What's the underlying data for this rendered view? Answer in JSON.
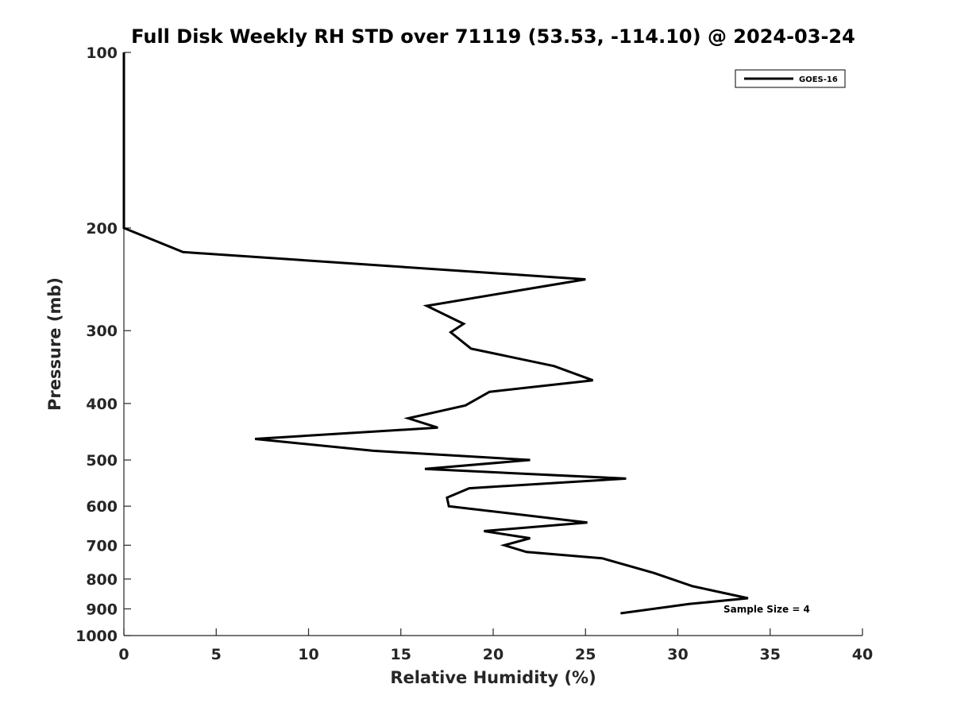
{
  "chart_data": {
    "type": "line",
    "title": "Full Disk Weekly RH STD over 71119 (53.53, -114.10) @ 2024-03-24",
    "xlabel": "Relative Humidity (%)",
    "ylabel": "Pressure (mb)",
    "xlim": [
      0,
      40
    ],
    "ylim": [
      1000,
      100
    ],
    "yscale": "log",
    "y_reversed": true,
    "x_ticks": [
      0,
      5,
      10,
      15,
      20,
      25,
      30,
      35,
      40
    ],
    "y_ticks": [
      100,
      200,
      300,
      400,
      500,
      600,
      700,
      800,
      900,
      1000
    ],
    "grid": false,
    "legend_position": "top-right",
    "series": [
      {
        "name": "GOES-16",
        "color": "#000000",
        "points": [
          {
            "x": 0.0,
            "y": 100
          },
          {
            "x": 0.0,
            "y": 200
          },
          {
            "x": 3.2,
            "y": 220
          },
          {
            "x": 25.0,
            "y": 245
          },
          {
            "x": 16.4,
            "y": 272
          },
          {
            "x": 18.4,
            "y": 292
          },
          {
            "x": 17.7,
            "y": 302
          },
          {
            "x": 18.8,
            "y": 322
          },
          {
            "x": 23.3,
            "y": 345
          },
          {
            "x": 25.4,
            "y": 365
          },
          {
            "x": 19.8,
            "y": 382
          },
          {
            "x": 18.5,
            "y": 403
          },
          {
            "x": 15.4,
            "y": 424
          },
          {
            "x": 17.0,
            "y": 440
          },
          {
            "x": 7.1,
            "y": 460
          },
          {
            "x": 13.5,
            "y": 482
          },
          {
            "x": 22.0,
            "y": 500
          },
          {
            "x": 16.3,
            "y": 518
          },
          {
            "x": 27.2,
            "y": 538
          },
          {
            "x": 18.7,
            "y": 559
          },
          {
            "x": 17.5,
            "y": 580
          },
          {
            "x": 17.6,
            "y": 600
          },
          {
            "x": 25.1,
            "y": 640
          },
          {
            "x": 19.5,
            "y": 662
          },
          {
            "x": 22.0,
            "y": 681
          },
          {
            "x": 20.6,
            "y": 700
          },
          {
            "x": 21.8,
            "y": 719
          },
          {
            "x": 25.9,
            "y": 737
          },
          {
            "x": 28.7,
            "y": 781
          },
          {
            "x": 30.8,
            "y": 823
          },
          {
            "x": 33.8,
            "y": 863
          },
          {
            "x": 30.6,
            "y": 883
          },
          {
            "x": 26.9,
            "y": 916
          }
        ]
      }
    ],
    "annotations": [
      {
        "text": "Sample Size = 4",
        "x": 32.5,
        "y": 900
      }
    ]
  }
}
